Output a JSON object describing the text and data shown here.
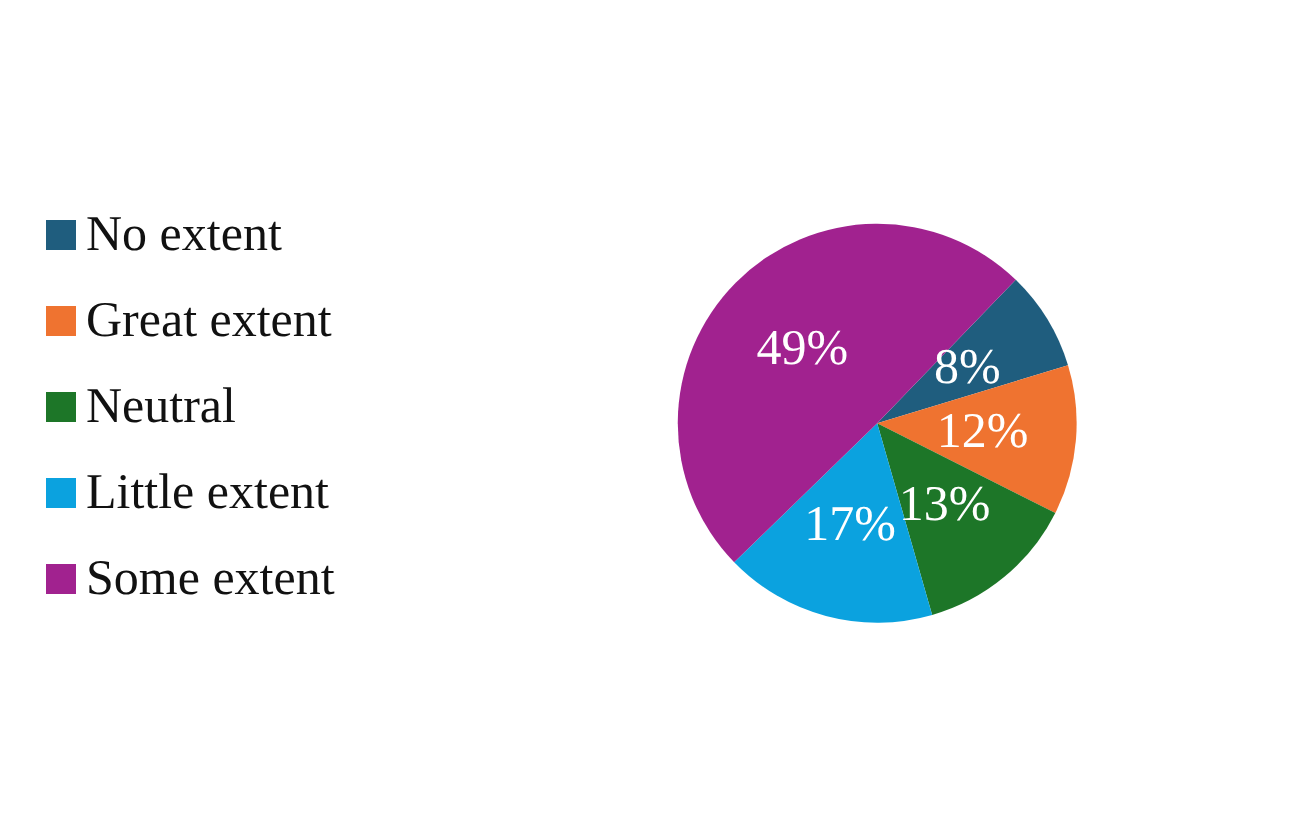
{
  "chart_data": {
    "type": "pie",
    "categories": [
      "No extent",
      "Great extent",
      "Neutral",
      "Little extent",
      "Some extent"
    ],
    "values": [
      8,
      12,
      13,
      17,
      49
    ],
    "colors": [
      "#1f5d7e",
      "#ef7330",
      "#1d7628",
      "#0ba2df",
      "#a1228f"
    ],
    "value_labels": [
      "8%",
      "12%",
      "13%",
      "17%",
      "49%"
    ],
    "legend": "left"
  }
}
